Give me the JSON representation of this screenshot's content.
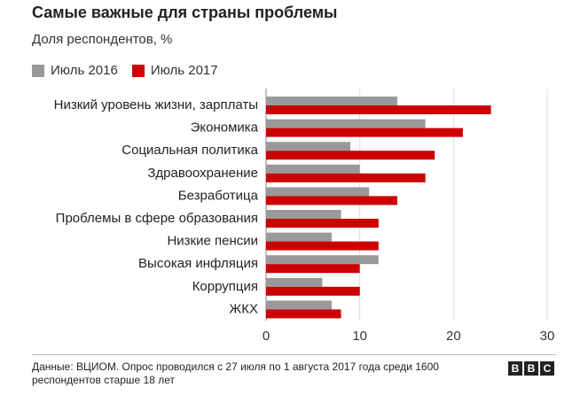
{
  "colors": {
    "series_2016": "#999999",
    "series_2017": "#cc0000"
  },
  "chart_data": {
    "type": "bar",
    "orientation": "horizontal",
    "title": "Самые важные для страны проблемы",
    "subtitle": "Доля респондентов, %",
    "categories": [
      "Низкий уровень жизни, зарплаты",
      "Экономика",
      "Социальная политика",
      "Здравоохранение",
      "Безработица",
      "Проблемы в сфере образования",
      "Низкие пенсии",
      "Высокая инфляция",
      "Коррупция",
      "ЖКХ"
    ],
    "series": [
      {
        "name": "Июль 2016",
        "values": [
          14,
          17,
          9,
          10,
          11,
          8,
          7,
          12,
          6,
          7
        ]
      },
      {
        "name": "Июль 2017",
        "values": [
          24,
          21,
          18,
          17,
          14,
          12,
          12,
          10,
          10,
          8
        ]
      }
    ],
    "xlim": [
      0,
      30
    ],
    "xticks": [
      "0",
      "10",
      "20",
      "30"
    ],
    "grid": true,
    "legend_position": "top-left"
  },
  "footer": {
    "source": "Данные: ВЦИОМ. Опрос проводился с 27 июля по 1 августа 2017 года среди 1600 респондентов старше 18 лет",
    "logo_letters": [
      "B",
      "B",
      "C"
    ]
  }
}
